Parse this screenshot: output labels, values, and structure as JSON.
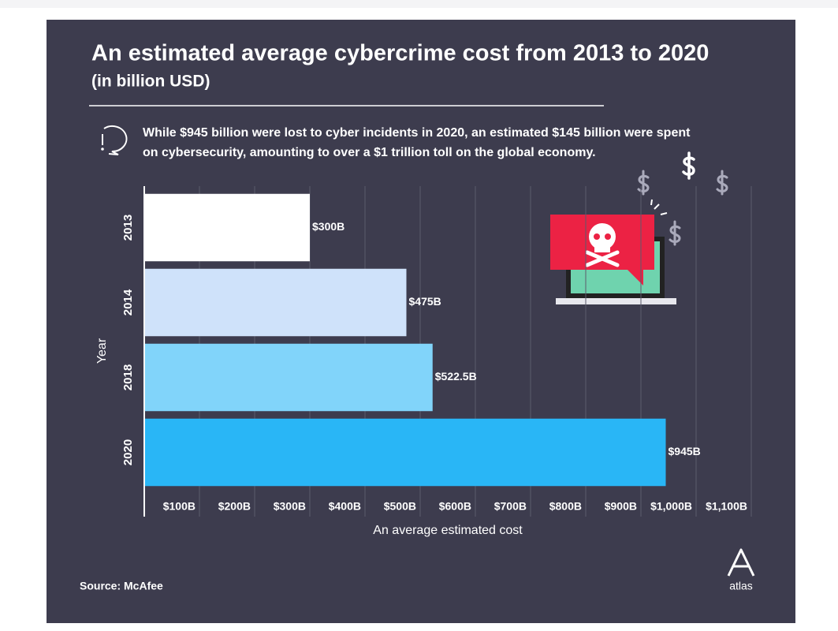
{
  "chart_data": {
    "type": "bar",
    "orientation": "horizontal",
    "title": "An estimated average cybercrime cost from 2013 to 2020",
    "subtitle": "(in billion USD)",
    "note": [
      "While $945 billion were lost to cyber incidents in 2020, an estimated $145 billion were spent",
      "on cybersecurity, amounting to over a $1 trillion toll on the global economy."
    ],
    "categories": [
      "2013",
      "2014",
      "2018",
      "2020"
    ],
    "values": [
      300,
      475,
      522.5,
      945
    ],
    "value_labels": [
      "$300B",
      "$475B",
      "$522.5B",
      "$945B"
    ],
    "colors": [
      "#ffffff",
      "#cfe2fa",
      "#81d4fa",
      "#29b6f6"
    ],
    "xlim": [
      0,
      1100
    ],
    "xticks": [
      {
        "value": 100,
        "label": "$100B"
      },
      {
        "value": 200,
        "label": "$200B"
      },
      {
        "value": 300,
        "label": "$300B"
      },
      {
        "value": 400,
        "label": "$400B"
      },
      {
        "value": 500,
        "label": "$500B"
      },
      {
        "value": 600,
        "label": "$600B"
      },
      {
        "value": 700,
        "label": "$700B"
      },
      {
        "value": 800,
        "label": "$800B"
      },
      {
        "value": 900,
        "label": "$900B"
      },
      {
        "value": 1000,
        "label": "$1,000B"
      },
      {
        "value": 1100,
        "label": "$1,100B"
      }
    ],
    "grid": true,
    "xlabel": "An average estimated cost",
    "ylabel": "Year",
    "source": "Source: McAfee",
    "logo": "atlas"
  }
}
